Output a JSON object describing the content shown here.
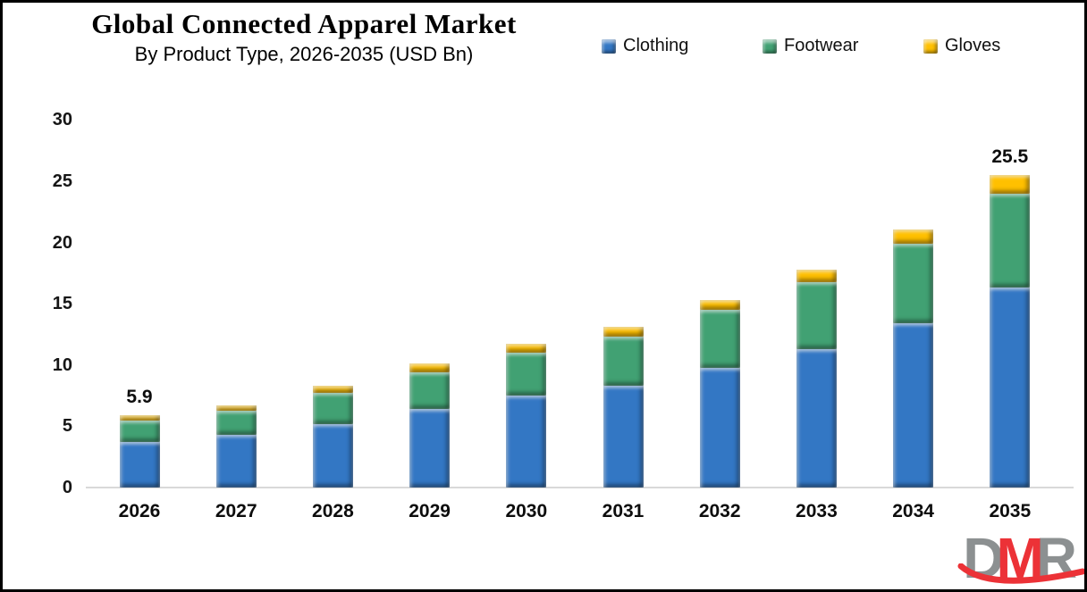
{
  "header": {
    "title": "Global Connected Apparel Market",
    "subtitle": "By Product Type, 2026-2035 (USD Bn)"
  },
  "colors": {
    "clothing": "#3377C4",
    "footwear": "#41A173",
    "gloves": "#FFC000",
    "axis_line": "#D9D9D9",
    "text": "#000000",
    "logo_gray": "#8C9091",
    "logo_red": "#EC3237",
    "background": "#FFFFFF",
    "border": "#000000"
  },
  "chart_data": {
    "type": "bar",
    "stacked": true,
    "title": "Global Connected Apparel Market",
    "subtitle": "By Product Type, 2026-2035 (USD Bn)",
    "unit": "USD Bn",
    "categories": [
      "2026",
      "2027",
      "2028",
      "2029",
      "2030",
      "2031",
      "2032",
      "2033",
      "2034",
      "2035"
    ],
    "series": [
      {
        "name": "Clothing",
        "color": "#3377C4",
        "values": [
          3.7,
          4.3,
          5.2,
          6.4,
          7.5,
          8.3,
          9.8,
          11.3,
          13.4,
          16.3
        ]
      },
      {
        "name": "Footwear",
        "color": "#41A173",
        "values": [
          1.8,
          2.0,
          2.5,
          3.0,
          3.5,
          4.0,
          4.7,
          5.5,
          6.5,
          7.7
        ]
      },
      {
        "name": "Gloves",
        "color": "#FFC000",
        "values": [
          0.4,
          0.4,
          0.6,
          0.7,
          0.7,
          0.8,
          0.8,
          1.0,
          1.2,
          1.5
        ]
      }
    ],
    "totals": [
      5.9,
      6.7,
      8.3,
      10.1,
      11.7,
      13.1,
      15.3,
      17.8,
      21.1,
      25.5
    ],
    "data_labels": [
      {
        "category": "2026",
        "text": "5.9"
      },
      {
        "category": "2035",
        "text": "25.5"
      }
    ],
    "yticks": [
      0,
      5,
      10,
      15,
      20,
      25,
      30
    ],
    "ylim": [
      0,
      30
    ],
    "xlabel": "",
    "ylabel": "",
    "grid": false,
    "legend_position": "top-right"
  },
  "logo": {
    "d": "D",
    "m": "M",
    "r": "R"
  }
}
